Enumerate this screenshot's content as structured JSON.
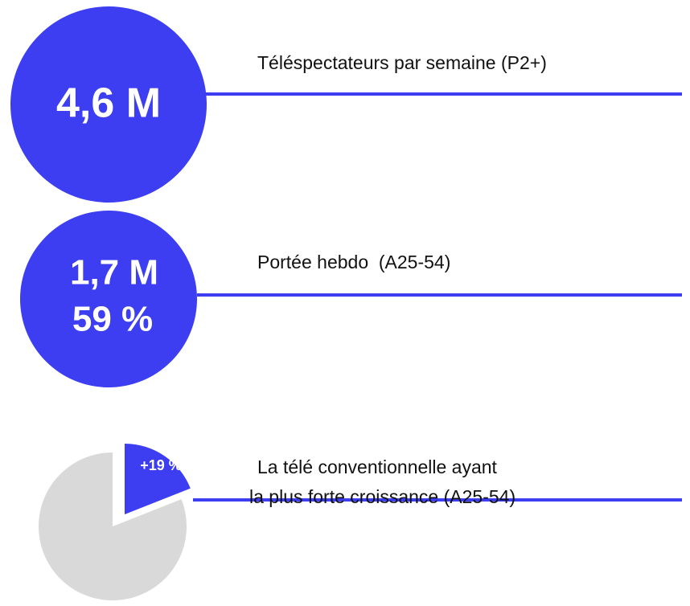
{
  "items": [
    {
      "figure_lines": [
        "4,6 M"
      ],
      "label_lines": [
        "Téléspectateurs par semaine (P2+)"
      ]
    },
    {
      "figure_lines": [
        "1,7 M",
        "59 %"
      ],
      "label_lines": [
        "Portée hebdo  (A25-54)"
      ]
    },
    {
      "pie": {
        "value": 19,
        "label": "+19 %"
      },
      "label_lines": [
        "La télé conventionnelle ayant",
        "la plus forte croissance (A25-54)"
      ]
    }
  ]
}
